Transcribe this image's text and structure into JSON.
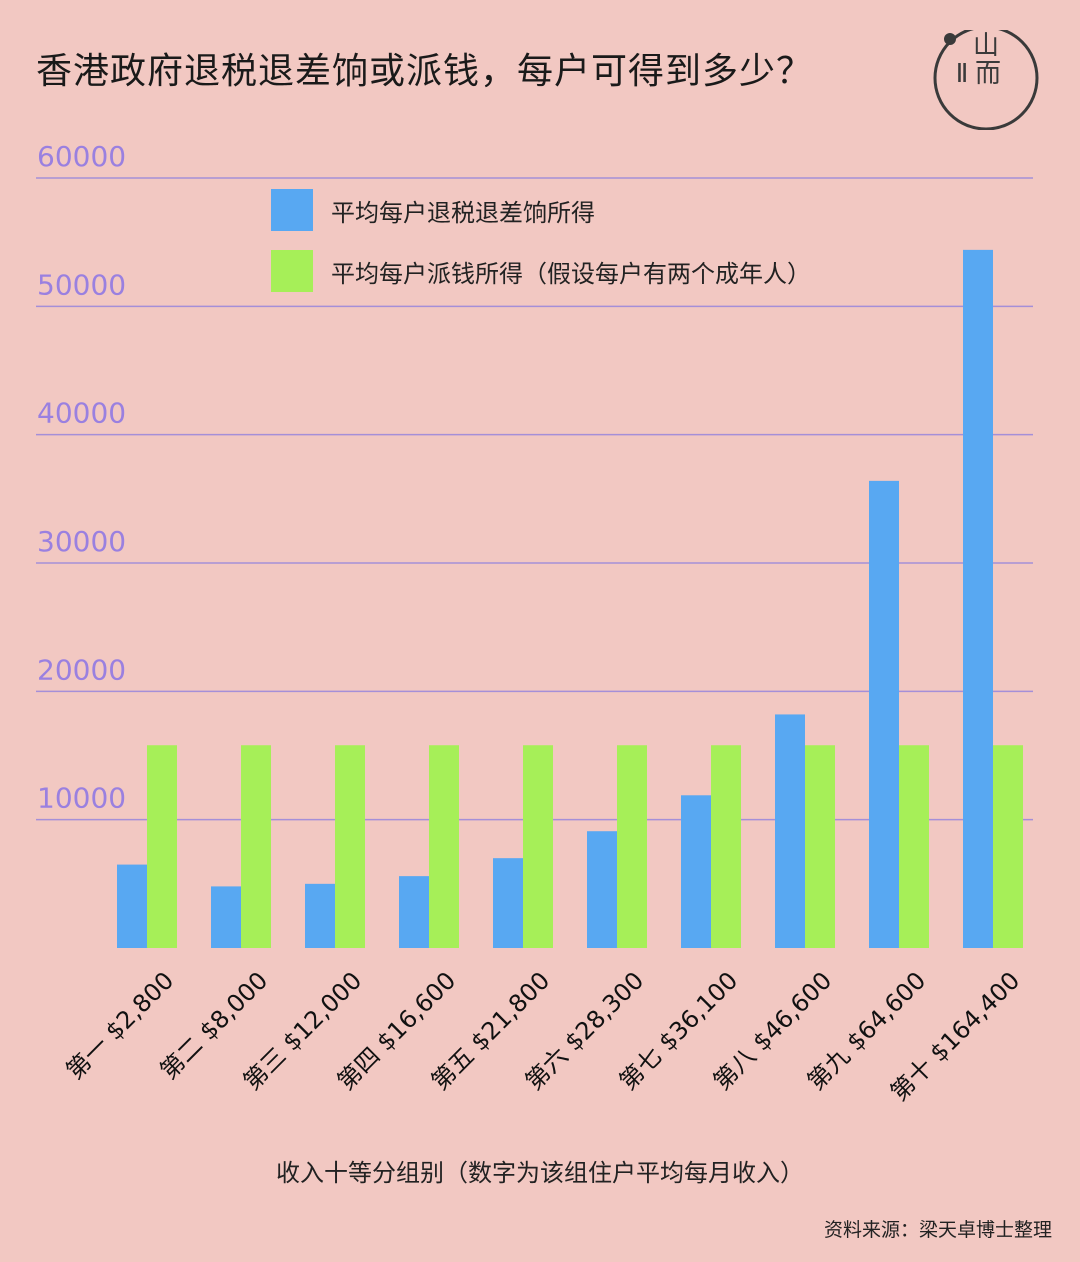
{
  "title": "香港政府退税退差饷或派钱，每户可得到多少？",
  "source": "资料来源：梁天卓博士整理",
  "logo": {
    "text_top": "山",
    "text_left": "Ⅱ",
    "text_right": "而"
  },
  "colors": {
    "background": "#f2c8c2",
    "blue": "#58a8f2",
    "green": "#a6ef58",
    "grid": "#a58fd8",
    "ytick": "#9a80e0"
  },
  "chart_data": {
    "type": "bar",
    "categories": [
      "第一 $2,800",
      "第二 $8,000",
      "第三 $12,000",
      "第四 $16,600",
      "第五 $21,800",
      "第六 $28,300",
      "第七 $36,100",
      "第八 $46,600",
      "第九 $64,600",
      "第十 $164,400"
    ],
    "series": [
      {
        "name": "平均每户退税退差饷所得",
        "color": "#58a8f2",
        "values": [
          6500,
          4800,
          5000,
          5600,
          7000,
          9100,
          11900,
          18200,
          36400,
          54400
        ]
      },
      {
        "name": "平均每户派钱所得（假设每户有两个成年人）",
        "color": "#a6ef58",
        "values": [
          15800,
          15800,
          15800,
          15800,
          15800,
          15800,
          15800,
          15800,
          15800,
          15800
        ]
      }
    ],
    "xlabel": "收入十等分组别（数字为该组住户平均每月收入）",
    "ylabel": "",
    "ylim": [
      0,
      60000
    ],
    "yticks": [
      "10000",
      "20000",
      "30000",
      "40000",
      "50000",
      "60000"
    ],
    "ytick_values": [
      10000,
      20000,
      30000,
      40000,
      50000,
      60000
    ],
    "grid": true,
    "legend_position": "top-left"
  }
}
